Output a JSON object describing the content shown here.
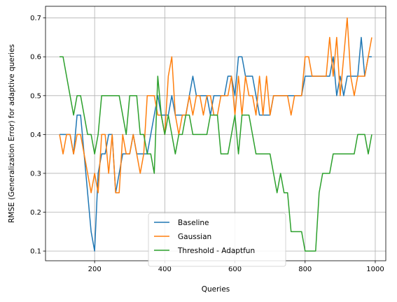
{
  "chart_data": {
    "type": "line",
    "xlabel": "Queries",
    "ylabel": "RMSE (Generalization Error) for adaptive queries",
    "xlim": [
      60,
      1030
    ],
    "ylim": [
      0.075,
      0.73
    ],
    "xticks": [
      200,
      400,
      600,
      800,
      1000
    ],
    "yticks": [
      0.1,
      0.2,
      0.3,
      0.4,
      0.5,
      0.6,
      0.7
    ],
    "grid": true,
    "legend_position": "lower-center",
    "x": [
      100,
      110,
      120,
      130,
      140,
      150,
      160,
      170,
      180,
      190,
      200,
      210,
      220,
      230,
      240,
      250,
      260,
      270,
      280,
      290,
      300,
      310,
      320,
      330,
      340,
      350,
      360,
      370,
      380,
      390,
      400,
      410,
      420,
      430,
      440,
      450,
      460,
      470,
      480,
      490,
      500,
      510,
      520,
      530,
      540,
      550,
      560,
      570,
      580,
      590,
      600,
      610,
      620,
      630,
      640,
      650,
      660,
      670,
      680,
      690,
      700,
      710,
      720,
      730,
      740,
      750,
      760,
      770,
      780,
      790,
      800,
      810,
      820,
      830,
      840,
      850,
      860,
      870,
      880,
      890,
      900,
      910,
      920,
      930,
      940,
      950,
      960,
      970,
      980,
      990
    ],
    "series": [
      {
        "name": "Baseline",
        "color": "#1f77b4",
        "values": [
          0.4,
          0.4,
          0.4,
          0.4,
          0.35,
          0.45,
          0.45,
          0.35,
          0.25,
          0.15,
          0.1,
          0.3,
          0.35,
          0.35,
          0.4,
          0.4,
          0.25,
          0.3,
          0.35,
          0.35,
          0.35,
          0.4,
          0.35,
          0.35,
          0.35,
          0.35,
          0.4,
          0.45,
          0.5,
          0.45,
          0.45,
          0.45,
          0.5,
          0.45,
          0.45,
          0.45,
          0.45,
          0.5,
          0.55,
          0.5,
          0.5,
          0.5,
          0.5,
          0.45,
          0.5,
          0.5,
          0.5,
          0.5,
          0.55,
          0.55,
          0.5,
          0.6,
          0.6,
          0.55,
          0.55,
          0.55,
          0.5,
          0.45,
          0.45,
          0.45,
          0.45,
          0.5,
          0.5,
          0.5,
          0.5,
          0.5,
          0.5,
          0.5,
          0.5,
          0.5,
          0.55,
          0.55,
          0.55,
          0.55,
          0.55,
          0.55,
          0.55,
          0.55,
          0.6,
          0.5,
          0.55,
          0.5,
          0.55,
          0.55,
          0.55,
          0.55,
          0.65,
          0.55,
          0.6,
          0.6
        ]
      },
      {
        "name": "Gaussian",
        "color": "#ff7f0e",
        "values": [
          0.4,
          0.35,
          0.4,
          0.4,
          0.35,
          0.4,
          0.4,
          0.35,
          0.3,
          0.25,
          0.3,
          0.25,
          0.4,
          0.4,
          0.3,
          0.4,
          0.25,
          0.25,
          0.4,
          0.35,
          0.35,
          0.4,
          0.35,
          0.3,
          0.35,
          0.5,
          0.5,
          0.5,
          0.45,
          0.45,
          0.4,
          0.55,
          0.6,
          0.45,
          0.4,
          0.45,
          0.45,
          0.5,
          0.45,
          0.5,
          0.5,
          0.45,
          0.5,
          0.5,
          0.45,
          0.45,
          0.5,
          0.5,
          0.5,
          0.55,
          0.45,
          0.55,
          0.45,
          0.55,
          0.5,
          0.5,
          0.45,
          0.55,
          0.45,
          0.55,
          0.45,
          0.5,
          0.5,
          0.5,
          0.5,
          0.5,
          0.45,
          0.5,
          0.5,
          0.5,
          0.6,
          0.6,
          0.55,
          0.55,
          0.55,
          0.55,
          0.55,
          0.65,
          0.55,
          0.65,
          0.5,
          0.6,
          0.7,
          0.55,
          0.5,
          0.55,
          0.55,
          0.55,
          0.6,
          0.65
        ]
      },
      {
        "name": "Threshold - Adaptfun",
        "color": "#2ca02c",
        "values": [
          0.6,
          0.6,
          0.55,
          0.5,
          0.45,
          0.5,
          0.5,
          0.45,
          0.4,
          0.4,
          0.35,
          0.4,
          0.5,
          0.5,
          0.5,
          0.5,
          0.5,
          0.5,
          0.45,
          0.4,
          0.5,
          0.5,
          0.5,
          0.4,
          0.4,
          0.35,
          0.35,
          0.3,
          0.55,
          0.45,
          0.4,
          0.45,
          0.4,
          0.35,
          0.4,
          0.4,
          0.45,
          0.45,
          0.4,
          0.4,
          0.4,
          0.4,
          0.4,
          0.45,
          0.45,
          0.45,
          0.35,
          0.35,
          0.35,
          0.4,
          0.45,
          0.35,
          0.45,
          0.45,
          0.45,
          0.4,
          0.35,
          0.35,
          0.35,
          0.35,
          0.35,
          0.3,
          0.25,
          0.3,
          0.25,
          0.25,
          0.15,
          0.15,
          0.15,
          0.15,
          0.1,
          0.1,
          0.1,
          0.1,
          0.25,
          0.3,
          0.3,
          0.3,
          0.35,
          0.35,
          0.35,
          0.35,
          0.35,
          0.35,
          0.35,
          0.4,
          0.4,
          0.4,
          0.35,
          0.4
        ]
      }
    ]
  }
}
